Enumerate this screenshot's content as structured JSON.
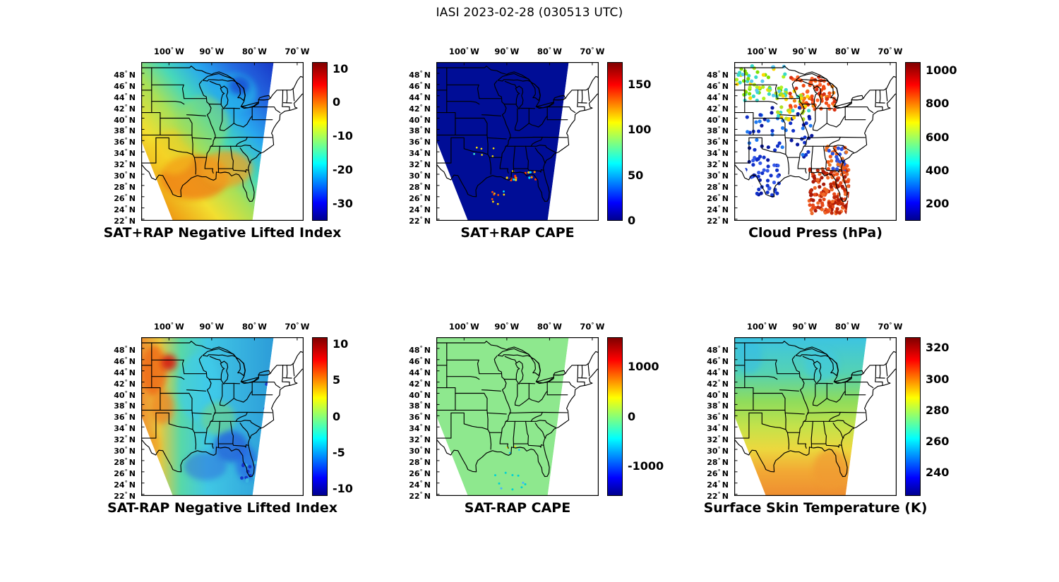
{
  "figure": {
    "title": "IASI 2023-02-28 (030513 UTC)",
    "background": "#ffffff"
  },
  "chart_data": {
    "type": "heatmap",
    "layout": "2 rows x 3 columns of geographic data panels, each with a jet colorbar",
    "geo_extent": {
      "lon_west": 106.5,
      "lon_east": 68.5,
      "lat_north": 50,
      "lat_south": 21.7
    },
    "axes": {
      "lon_ticks": [
        100,
        90,
        80,
        70
      ],
      "lon_suffix": "W",
      "lat_ticks": [
        48,
        46,
        44,
        42,
        40,
        38,
        36,
        34,
        32,
        30,
        28,
        26,
        24,
        22
      ],
      "lat_suffix": "N"
    },
    "colormap_jet": [
      "#00008F",
      "#0000FF",
      "#00FFFF",
      "#FFFF00",
      "#FF0000",
      "#800000"
    ],
    "panels": [
      {
        "id": "sat-plus-rap-nli",
        "title": "SAT+RAP Negative Lifted Index",
        "colorbar": {
          "min": -35,
          "max": 12,
          "ticks": [
            10,
            0,
            -10,
            -20,
            -30
          ]
        },
        "render": {
          "field": "gradient",
          "direction": "sw-ne",
          "stops": [
            [
              0,
              "#e06a10"
            ],
            [
              0.16,
              "#f0a818"
            ],
            [
              0.3,
              "#f2df30"
            ],
            [
              0.45,
              "#a8e058"
            ],
            [
              0.57,
              "#48d8b8"
            ],
            [
              0.7,
              "#28a8ee"
            ],
            [
              0.84,
              "#2468e0"
            ],
            [
              1,
              "#1838c8"
            ]
          ],
          "blobs": [
            {
              "lon": 94,
              "lat": 29.5,
              "rlon": 8,
              "rlat": 4,
              "color": "#f08418",
              "opacity": 0.85
            },
            {
              "lon": 86.5,
              "lat": 31,
              "rlon": 6,
              "rlat": 3.2,
              "color": "#f0a020",
              "opacity": 0.75
            },
            {
              "lon": 99,
              "lat": 34,
              "rlon": 5,
              "rlat": 4,
              "color": "#f6c81e",
              "opacity": 0.5
            },
            {
              "lon": 84.5,
              "lat": 44.5,
              "rlon": 5,
              "rlat": 3.5,
              "color": "#28b0e8",
              "opacity": 0.7
            },
            {
              "lon": 83.5,
              "lat": 45.8,
              "rlon": 2.4,
              "rlat": 1.6,
              "color": "#1545d2",
              "opacity": 0.75
            },
            {
              "lon": 92,
              "lat": 39,
              "rlon": 6,
              "rlat": 5,
              "color": "#98dc60",
              "opacity": 0.45
            }
          ]
        }
      },
      {
        "id": "sat-plus-rap-cape",
        "title": "SAT+RAP CAPE",
        "colorbar": {
          "min": 0,
          "max": 175,
          "ticks": [
            150,
            100,
            50,
            0
          ]
        },
        "render": {
          "field": "solid",
          "color": "#000d96",
          "specks": [
            {
              "lon_w": 90,
              "lon_e": 83,
              "lat_s": 28.6,
              "lat_n": 30.6,
              "count": 16,
              "r": 1.6,
              "colors": [
                "#ff3800",
                "#ffd800",
                "#00e0ff",
                "#ff9000"
              ]
            },
            {
              "lon_w": 97,
              "lon_e": 90,
              "lat_s": 24.5,
              "lat_n": 27,
              "count": 9,
              "r": 1.4,
              "colors": [
                "#ffd800",
                "#00e0ff",
                "#ff5000"
              ]
            },
            {
              "lon_w": 99,
              "lon_e": 93,
              "lat_s": 33,
              "lat_n": 35,
              "count": 6,
              "r": 1.3,
              "colors": [
                "#ffe400",
                "#40ffd0"
              ]
            }
          ]
        }
      },
      {
        "id": "cloud-press",
        "title": "Cloud Press (hPa)",
        "colorbar": {
          "min": 100,
          "max": 1050,
          "ticks": [
            1000,
            800,
            600,
            400,
            200
          ]
        },
        "render": {
          "field": "dots",
          "dot_r": 2.6,
          "clusters": [
            {
              "lon_w": 106,
              "lon_e": 94,
              "lat_s": 43,
              "lat_n": 49.5,
              "count": 70,
              "colors": [
                "#38d8c8",
                "#7fe000",
                "#b0f020",
                "#ffd700",
                "#58c8f0"
              ]
            },
            {
              "lon_w": 93.5,
              "lon_e": 83,
              "lat_s": 41.5,
              "lat_n": 47.5,
              "count": 90,
              "colors": [
                "#f04810",
                "#ff6028",
                "#f08010",
                "#d83010"
              ]
            },
            {
              "lon_w": 104,
              "lon_e": 88,
              "lat_s": 33,
              "lat_n": 42,
              "count": 55,
              "colors": [
                "#1030c8",
                "#1e78f0",
                "#0818a0"
              ]
            },
            {
              "lon_w": 104,
              "lon_e": 96,
              "lat_s": 26,
              "lat_n": 33,
              "count": 50,
              "colors": [
                "#1030c8",
                "#3458e8",
                "#0818a0"
              ]
            },
            {
              "lon_w": 89,
              "lon_e": 79.5,
              "lat_s": 23,
              "lat_n": 31,
              "count": 170,
              "colors": [
                "#a81808",
                "#c02808",
                "#e84818",
                "#f06828"
              ]
            },
            {
              "lon_w": 85,
              "lon_e": 80,
              "lat_s": 30,
              "lat_n": 35,
              "count": 45,
              "colors": [
                "#f05818",
                "#e87020",
                "#2850e0"
              ]
            },
            {
              "lon_w": 97,
              "lon_e": 89,
              "lat_s": 39.5,
              "lat_n": 45,
              "count": 35,
              "colors": [
                "#b0e020",
                "#ffd700",
                "#38d8c8"
              ]
            }
          ]
        }
      },
      {
        "id": "sat-minus-rap-nli",
        "title": "SAT-RAP Negative Lifted Index",
        "colorbar": {
          "min": -11,
          "max": 11,
          "ticks": [
            10,
            5,
            0,
            -5,
            -10
          ]
        },
        "render": {
          "field": "gradient",
          "direction": "w-e",
          "stops": [
            [
              0,
              "#f09030"
            ],
            [
              0.14,
              "#e8c840"
            ],
            [
              0.3,
              "#58d8a8"
            ],
            [
              0.5,
              "#40c8e4"
            ],
            [
              0.72,
              "#38b4e0"
            ],
            [
              1,
              "#2c9cd8"
            ]
          ],
          "blobs": [
            {
              "lon": 103.5,
              "lat": 44,
              "rlon": 3,
              "rlat": 4.5,
              "color": "#f06818",
              "opacity": 0.8
            },
            {
              "lon": 100,
              "lat": 45.5,
              "rlon": 1.8,
              "rlat": 1.4,
              "color": "#d81808",
              "opacity": 0.85
            },
            {
              "lon": 101.5,
              "lat": 37.5,
              "rlon": 2.6,
              "rlat": 3,
              "color": "#f08020",
              "opacity": 0.7
            },
            {
              "lon": 104.5,
              "lat": 30.5,
              "rlon": 2.4,
              "rlat": 2.6,
              "color": "#f0a028",
              "opacity": 0.7
            },
            {
              "lon": 93,
              "lat": 41,
              "rlon": 5,
              "rlat": 6,
              "color": "#40ccec",
              "opacity": 0.6
            },
            {
              "lon": 88.5,
              "lat": 35.5,
              "rlon": 4,
              "rlat": 3,
              "color": "#78d878",
              "opacity": 0.55
            },
            {
              "lon": 85.5,
              "lat": 30.5,
              "rlon": 4,
              "rlat": 2.8,
              "color": "#2350d8",
              "opacity": 0.65
            },
            {
              "lon": 81.8,
              "lat": 27.5,
              "rlon": 2.6,
              "rlat": 3,
              "color": "#2868e4",
              "opacity": 0.7
            },
            {
              "lon": 91.5,
              "lat": 27,
              "rlon": 5,
              "rlat": 2.5,
              "color": "#2f66dd",
              "opacity": 0.5
            }
          ],
          "clusters": [
            {
              "lon_w": 77.5,
              "lon_e": 74.5,
              "lat_s": 36.5,
              "lat_n": 42,
              "count": 14,
              "r": 2.4,
              "colors": [
                "#1535c8",
                "#2458e8"
              ]
            },
            {
              "lon_w": 83,
              "lon_e": 79.5,
              "lat_s": 24,
              "lat_n": 28,
              "count": 12,
              "r": 2.4,
              "colors": [
                "#1535c8",
                "#38b4e0"
              ]
            }
          ]
        }
      },
      {
        "id": "sat-minus-rap-cape",
        "title": "SAT-RAP CAPE",
        "colorbar": {
          "min": -1600,
          "max": 1600,
          "ticks": [
            1000,
            0,
            -1000
          ]
        },
        "render": {
          "field": "solid",
          "color": "#8ee88e",
          "specks": [
            {
              "lon_w": 93,
              "lon_e": 85,
              "lat_s": 22,
              "lat_n": 26,
              "count": 10,
              "r": 1.5,
              "colors": [
                "#00d2d2",
                "#46b4ff"
              ]
            },
            {
              "lon_w": 90,
              "lon_e": 86,
              "lat_s": 29,
              "lat_n": 31,
              "count": 4,
              "r": 1.2,
              "colors": [
                "#ffe000",
                "#00c8ff"
              ]
            }
          ]
        }
      },
      {
        "id": "surface-skin-temp",
        "title": "Surface Skin Temperature (K)",
        "colorbar": {
          "min": 225,
          "max": 327,
          "ticks": [
            320,
            300,
            280,
            260,
            240
          ]
        },
        "render": {
          "field": "gradient",
          "direction": "n-s",
          "stops": [
            [
              0,
              "#3cc4e2"
            ],
            [
              0.22,
              "#54d2b4"
            ],
            [
              0.4,
              "#8edc5c"
            ],
            [
              0.56,
              "#c4e24a"
            ],
            [
              0.7,
              "#ecd83e"
            ],
            [
              0.84,
              "#f2a834"
            ],
            [
              1,
              "#ee8c30"
            ]
          ],
          "blobs": [
            {
              "lon": 103,
              "lat": 46.5,
              "rlon": 3,
              "rlat": 3,
              "color": "#34bce6",
              "opacity": 0.55
            },
            {
              "lon": 86,
              "lat": 45,
              "rlon": 4,
              "rlat": 3,
              "color": "#3cc8e8",
              "opacity": 0.5
            },
            {
              "lon": 84,
              "lat": 26.5,
              "rlon": 4,
              "rlat": 3.5,
              "color": "#f09a30",
              "opacity": 0.7
            }
          ]
        }
      }
    ]
  }
}
